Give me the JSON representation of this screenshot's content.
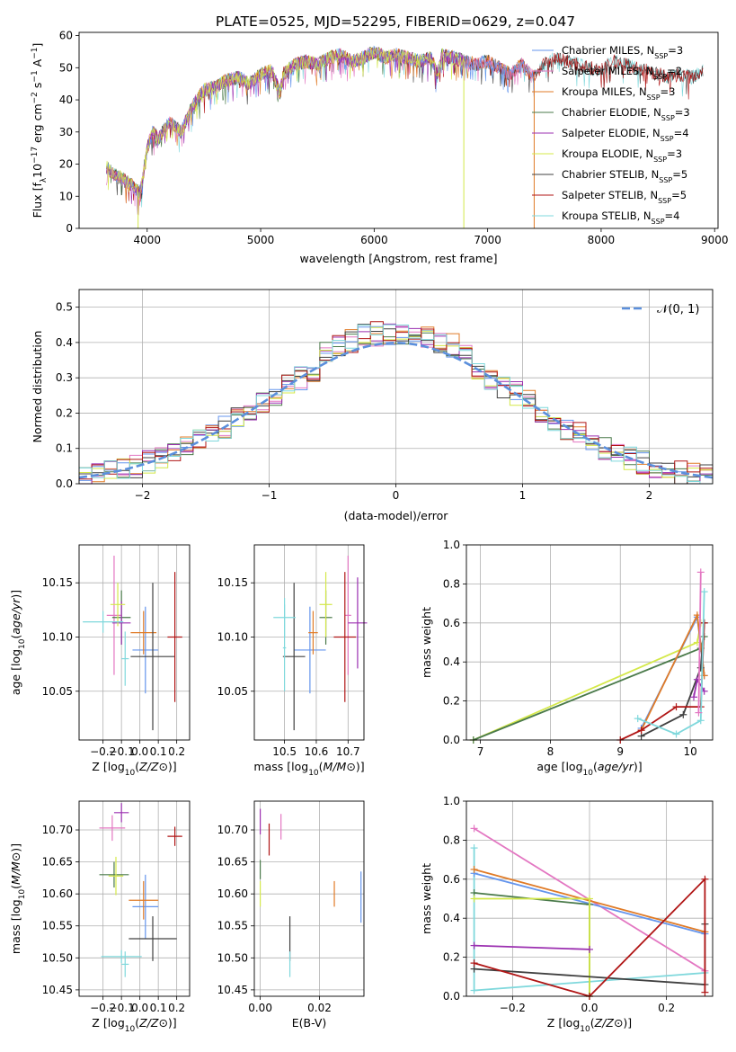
{
  "title": "PLATE=0525, MJD=52295, FIBERID=0629, z=0.047",
  "colors": {
    "Chabrier MILES": "#6495ed",
    "Salpeter MILES": "#e377c2",
    "Kroupa MILES": "#e07b27",
    "Chabrier ELODIE": "#4a7a4a",
    "Salpeter ELODIE": "#9b2fb0",
    "Kroupa ELODIE": "#d4e84a",
    "Chabrier STELIB": "#404040",
    "Salpeter STELIB": "#b01515",
    "Kroupa STELIB": "#7fd8dc"
  },
  "legend": [
    {
      "label": "Chabrier MILES, N",
      "sub": "SSP",
      "n": "=3"
    },
    {
      "label": "Salpeter MILES, N",
      "sub": "SSP",
      "n": "=2"
    },
    {
      "label": "Kroupa MILES, N",
      "sub": "SSP",
      "n": "=3"
    },
    {
      "label": "Chabrier ELODIE, N",
      "sub": "SSP",
      "n": "=3"
    },
    {
      "label": "Salpeter ELODIE, N",
      "sub": "SSP",
      "n": "=4"
    },
    {
      "label": "Kroupa ELODIE, N",
      "sub": "SSP",
      "n": "=3"
    },
    {
      "label": "Chabrier STELIB, N",
      "sub": "SSP",
      "n": "=5"
    },
    {
      "label": "Salpeter STELIB, N",
      "sub": "SSP",
      "n": "=5"
    },
    {
      "label": "Kroupa STELIB, N",
      "sub": "SSP",
      "n": "=4"
    }
  ],
  "normal_legend": "𝒩(0, 1)",
  "chart_data": [
    {
      "id": "spectrum",
      "type": "line",
      "xlabel": "wavelength [Angstrom, rest frame]",
      "ylabel": "Flux [f_λ 10^-17 erg cm^-2 s^-1 A^-1]",
      "xlim": [
        3400,
        9030
      ],
      "ylim": [
        0,
        61
      ],
      "xticks": [
        4000,
        5000,
        6000,
        7000,
        8000,
        9000
      ],
      "yticks": [
        0,
        10,
        20,
        30,
        40,
        50,
        60
      ],
      "envelope": {
        "x": [
          3640,
          3700,
          3750,
          3800,
          3850,
          3900,
          3930,
          3950,
          4000,
          4050,
          4100,
          4150,
          4200,
          4300,
          4400,
          4500,
          4600,
          4700,
          4800,
          4900,
          5000,
          5100,
          5170,
          5200,
          5300,
          5400,
          5500,
          5600,
          5700,
          5800,
          5900,
          6000,
          6100,
          6200,
          6300,
          6400,
          6500,
          6560,
          6600,
          6700,
          6800,
          6900,
          7000,
          7100,
          7200,
          7300,
          7400,
          7500,
          7600,
          7700,
          7800,
          7900,
          8000,
          8100,
          8200,
          8300,
          8400,
          8500,
          8600,
          8700,
          8800,
          8900
        ],
        "y": [
          19,
          17,
          16,
          15,
          14,
          12,
          11,
          13,
          25,
          30,
          28,
          31,
          33,
          30,
          38,
          43,
          44,
          46,
          47,
          45,
          48,
          49,
          42,
          48,
          51,
          52,
          51,
          53,
          54,
          52,
          53,
          55,
          53,
          54,
          53,
          52,
          53,
          48,
          54,
          53,
          52,
          51,
          52,
          50,
          48,
          51,
          47,
          51,
          53,
          52,
          51,
          50,
          49,
          52,
          51,
          50,
          49,
          48,
          47,
          48,
          47,
          49
        ]
      },
      "dropouts": [
        {
          "series": "Kroupa ELODIE",
          "x": 3920
        },
        {
          "series": "Kroupa ELODIE",
          "x": 6790
        },
        {
          "series": "Kroupa MILES",
          "x": 7410
        }
      ]
    },
    {
      "id": "residual-histogram",
      "type": "bar",
      "xlabel": "(data-model)/error",
      "ylabel": "Normed distribution",
      "xlim": [
        -2.5,
        2.5
      ],
      "ylim": [
        0,
        0.55
      ],
      "xticks": [
        -2,
        -1,
        0,
        1,
        2
      ],
      "yticks": [
        0,
        0.1,
        0.2,
        0.3,
        0.4,
        0.5
      ],
      "bin_width": 0.1
    },
    {
      "id": "age-vs-Z",
      "type": "scatter",
      "xlabel": "Z [log10(Z/Z⊙)]",
      "ylabel": "age [log10(age/yr)]",
      "xlim": [
        -0.33,
        0.27
      ],
      "ylim": [
        10.005,
        10.185
      ],
      "xticks": [
        -0.2,
        -0.1,
        0.0,
        0.1,
        0.2
      ],
      "xticklabels": [
        "−0.2",
        "−0.1",
        "0.0",
        "0.1",
        "0.2"
      ],
      "yticks": [
        10.05,
        10.1,
        10.15
      ],
      "points": [
        {
          "s": "Chabrier MILES",
          "x": 0.03,
          "y": 10.088,
          "ex": 0.07,
          "ey": 0.04
        },
        {
          "s": "Salpeter MILES",
          "x": -0.14,
          "y": 10.12,
          "ex": 0.04,
          "ey": 0.055
        },
        {
          "s": "Kroupa MILES",
          "x": 0.02,
          "y": 10.104,
          "ex": 0.07,
          "ey": 0.02
        },
        {
          "s": "Chabrier ELODIE",
          "x": -0.1,
          "y": 10.118,
          "ex": 0.05,
          "ey": 0.025
        },
        {
          "s": "Salpeter ELODIE",
          "x": -0.1,
          "y": 10.113,
          "ex": 0.05,
          "ey": 0.02
        },
        {
          "s": "Kroupa ELODIE",
          "x": -0.12,
          "y": 10.13,
          "ex": 0.04,
          "ey": 0.02
        },
        {
          "s": "Chabrier STELIB",
          "x": 0.07,
          "y": 10.082,
          "ex": 0.12,
          "ey": 0.068
        },
        {
          "s": "Salpeter STELIB",
          "x": 0.19,
          "y": 10.1,
          "ex": 0.04,
          "ey": 0.06
        },
        {
          "s": "Kroupa STELIB",
          "x": -0.2,
          "y": 10.114,
          "ex": 0.11,
          "ey": 0.01
        },
        {
          "s": "Kroupa STELIB",
          "x": -0.08,
          "y": 10.08,
          "ex": 0.02,
          "ey": 0.025
        }
      ]
    },
    {
      "id": "age-vs-mass",
      "type": "scatter",
      "xlabel": "mass [log10(M/M⊙)]",
      "ylabel": "",
      "xlim": [
        10.405,
        10.75
      ],
      "ylim": [
        10.005,
        10.185
      ],
      "xticks": [
        10.5,
        10.6,
        10.7
      ],
      "yticks": [
        10.05,
        10.1,
        10.15
      ],
      "points": [
        {
          "s": "Chabrier MILES",
          "x": 10.58,
          "y": 10.088,
          "ex": 0.05,
          "ey": 0.04
        },
        {
          "s": "Salpeter MILES",
          "x": 10.7,
          "y": 10.12,
          "ex": 0.01,
          "ey": 0.055
        },
        {
          "s": "Kroupa MILES",
          "x": 10.59,
          "y": 10.104,
          "ex": 0.015,
          "ey": 0.02
        },
        {
          "s": "Chabrier ELODIE",
          "x": 10.63,
          "y": 10.118,
          "ex": 0.02,
          "ey": 0.025
        },
        {
          "s": "Salpeter ELODIE",
          "x": 10.73,
          "y": 10.113,
          "ex": 0.03,
          "ey": 0.042
        },
        {
          "s": "Kroupa ELODIE",
          "x": 10.63,
          "y": 10.13,
          "ex": 0.02,
          "ey": 0.03
        },
        {
          "s": "Chabrier STELIB",
          "x": 10.53,
          "y": 10.082,
          "ex": 0.035,
          "ey": 0.068
        },
        {
          "s": "Salpeter STELIB",
          "x": 10.69,
          "y": 10.1,
          "ex": 0.035,
          "ey": 0.06
        },
        {
          "s": "Kroupa STELIB",
          "x": 10.5,
          "y": 10.118,
          "ex": 0.035,
          "ey": 0.018
        },
        {
          "s": "Kroupa STELIB",
          "x": 10.5,
          "y": 10.09,
          "ex": 0.005,
          "ey": 0.04
        }
      ]
    },
    {
      "id": "mass-weight-vs-age",
      "type": "line",
      "xlabel": "age  [log10(age/yr)]",
      "ylabel": "mass weight",
      "xlim": [
        6.8,
        10.32
      ],
      "ylim": [
        0,
        1
      ],
      "xticks": [
        7,
        8,
        9,
        10
      ],
      "yticks": [
        0,
        0.2,
        0.4,
        0.6,
        0.8,
        1.0
      ],
      "series": [
        {
          "s": "Kroupa ELODIE",
          "x": [
            6.9,
            10.1,
            10.15
          ],
          "y": [
            0.0,
            0.5,
            0.6
          ]
        },
        {
          "s": "Chabrier ELODIE",
          "x": [
            6.9,
            10.15,
            10.2
          ],
          "y": [
            0.0,
            0.47,
            0.53
          ]
        },
        {
          "s": "Chabrier MILES",
          "x": [
            9.3,
            10.1,
            10.2
          ],
          "y": [
            0.06,
            0.63,
            0.33
          ]
        },
        {
          "s": "Kroupa MILES",
          "x": [
            9.3,
            10.1,
            10.2
          ],
          "y": [
            0.05,
            0.64,
            0.33
          ]
        },
        {
          "s": "Chabrier STELIB",
          "x": [
            9.3,
            9.9,
            10.15,
            10.2
          ],
          "y": [
            0.02,
            0.13,
            0.37,
            0.6
          ]
        },
        {
          "s": "Salpeter STELIB",
          "x": [
            9.0,
            9.3,
            9.8,
            10.15,
            10.2
          ],
          "y": [
            0.0,
            0.05,
            0.17,
            0.17,
            0.6
          ]
        },
        {
          "s": "Salpeter ELODIE",
          "x": [
            10.05,
            10.1,
            10.2
          ],
          "y": [
            0.22,
            0.31,
            0.25
          ]
        },
        {
          "s": "Kroupa STELIB",
          "x": [
            9.25,
            9.8,
            10.15,
            10.2
          ],
          "y": [
            0.11,
            0.03,
            0.1,
            0.76
          ]
        },
        {
          "s": "Salpeter MILES",
          "x": [
            10.12,
            10.15
          ],
          "y": [
            0.14,
            0.86
          ]
        }
      ]
    },
    {
      "id": "mass-vs-Z",
      "type": "scatter",
      "xlabel": "Z [log10(Z/Z⊙)]",
      "ylabel": "mass [log10(M/M⊙)]",
      "xlim": [
        -0.33,
        0.27
      ],
      "ylim": [
        10.44,
        10.745
      ],
      "xticks": [
        -0.2,
        -0.1,
        0.0,
        0.1,
        0.2
      ],
      "xticklabels": [
        "−0.2",
        "−0.1",
        "0.0",
        "0.1",
        "0.2"
      ],
      "yticks": [
        10.45,
        10.5,
        10.55,
        10.6,
        10.65,
        10.7
      ],
      "points": [
        {
          "s": "Chabrier MILES",
          "x": 0.03,
          "y": 10.58,
          "ex": 0.07,
          "ey": 0.05
        },
        {
          "s": "Salpeter MILES",
          "x": -0.15,
          "y": 10.703,
          "ex": 0.07,
          "ey": 0.02
        },
        {
          "s": "Kroupa MILES",
          "x": 0.02,
          "y": 10.59,
          "ex": 0.08,
          "ey": 0.03
        },
        {
          "s": "Chabrier ELODIE",
          "x": -0.14,
          "y": 10.63,
          "ex": 0.08,
          "ey": 0.02
        },
        {
          "s": "Salpeter ELODIE",
          "x": -0.1,
          "y": 10.727,
          "ex": 0.04,
          "ey": 0.015
        },
        {
          "s": "Kroupa ELODIE",
          "x": -0.13,
          "y": 10.628,
          "ex": 0.04,
          "ey": 0.03
        },
        {
          "s": "Chabrier STELIB",
          "x": 0.07,
          "y": 10.53,
          "ex": 0.13,
          "ey": 0.035
        },
        {
          "s": "Salpeter STELIB",
          "x": 0.19,
          "y": 10.69,
          "ex": 0.04,
          "ey": 0.015
        },
        {
          "s": "Kroupa STELIB",
          "x": -0.1,
          "y": 10.502,
          "ex": 0.11,
          "ey": 0.01
        },
        {
          "s": "Kroupa STELIB",
          "x": -0.08,
          "y": 10.49,
          "ex": 0.02,
          "ey": 0.02
        }
      ]
    },
    {
      "id": "mass-vs-ebv",
      "type": "scatter",
      "xlabel": "E(B-V)",
      "ylabel": "",
      "xlim": [
        -0.002,
        0.035
      ],
      "ylim": [
        10.44,
        10.745
      ],
      "xticks": [
        0.0,
        0.02
      ],
      "xticklabels": [
        "0.00",
        "0.02"
      ],
      "yticks": [
        10.45,
        10.5,
        10.55,
        10.6,
        10.65,
        10.7
      ],
      "points": [
        {
          "s": "Chabrier MILES",
          "x": 0.034,
          "y": 10.595,
          "ex": 0,
          "ey": 0.04
        },
        {
          "s": "Salpeter MILES",
          "x": 0.007,
          "y": 10.705,
          "ex": 0,
          "ey": 0.02
        },
        {
          "s": "Kroupa MILES",
          "x": 0.025,
          "y": 10.6,
          "ex": 0,
          "ey": 0.02
        },
        {
          "s": "Chabrier ELODIE",
          "x": 0.0,
          "y": 10.638,
          "ex": 0,
          "ey": 0.015
        },
        {
          "s": "Salpeter ELODIE",
          "x": 0.0,
          "y": 10.713,
          "ex": 0,
          "ey": 0.02
        },
        {
          "s": "Kroupa ELODIE",
          "x": 0.0,
          "y": 10.6,
          "ex": 0,
          "ey": 0.02
        },
        {
          "s": "Chabrier STELIB",
          "x": 0.01,
          "y": 10.53,
          "ex": 0,
          "ey": 0.035
        },
        {
          "s": "Salpeter STELIB",
          "x": 0.003,
          "y": 10.685,
          "ex": 0,
          "ey": 0.025
        },
        {
          "s": "Kroupa STELIB",
          "x": 0.01,
          "y": 10.49,
          "ex": 0,
          "ey": 0.02
        }
      ]
    },
    {
      "id": "mass-weight-vs-Z",
      "type": "line",
      "xlabel": "Z [log10(Z/Z⊙)]",
      "ylabel": "mass weight",
      "xlim": [
        -0.32,
        0.32
      ],
      "ylim": [
        0,
        1
      ],
      "xticks": [
        -0.2,
        0.0,
        0.2
      ],
      "xticklabels": [
        "−0.2",
        "0.0",
        "0.2"
      ],
      "yticks": [
        0,
        0.2,
        0.4,
        0.6,
        0.8,
        1.0
      ],
      "series": [
        {
          "s": "Salpeter MILES",
          "x": [
            -0.3,
            0.3
          ],
          "y": [
            0.86,
            0.13
          ]
        },
        {
          "s": "Kroupa STELIB",
          "x": [
            -0.3,
            -0.3,
            0.3
          ],
          "y": [
            0.76,
            0.03,
            0.12
          ]
        },
        {
          "s": "Chabrier MILES",
          "x": [
            -0.3,
            0.3
          ],
          "y": [
            0.63,
            0.32
          ]
        },
        {
          "s": "Kroupa MILES",
          "x": [
            -0.3,
            0.3
          ],
          "y": [
            0.65,
            0.33
          ]
        },
        {
          "s": "Chabrier ELODIE",
          "x": [
            -0.3,
            0.0,
            0.0
          ],
          "y": [
            0.53,
            0.47,
            0.0
          ]
        },
        {
          "s": "Kroupa ELODIE",
          "x": [
            -0.3,
            0.0,
            0.0
          ],
          "y": [
            0.5,
            0.5,
            0.0
          ]
        },
        {
          "s": "Salpeter ELODIE",
          "x": [
            -0.3,
            0.0
          ],
          "y": [
            0.26,
            0.24
          ]
        },
        {
          "s": "Chabrier STELIB",
          "x": [
            -0.3,
            0.3,
            0.3
          ],
          "y": [
            0.14,
            0.06,
            0.37
          ]
        },
        {
          "s": "Salpeter STELIB",
          "x": [
            -0.3,
            0.0,
            0.3,
            0.3
          ],
          "y": [
            0.17,
            0.0,
            0.6,
            0.02
          ]
        }
      ]
    }
  ]
}
